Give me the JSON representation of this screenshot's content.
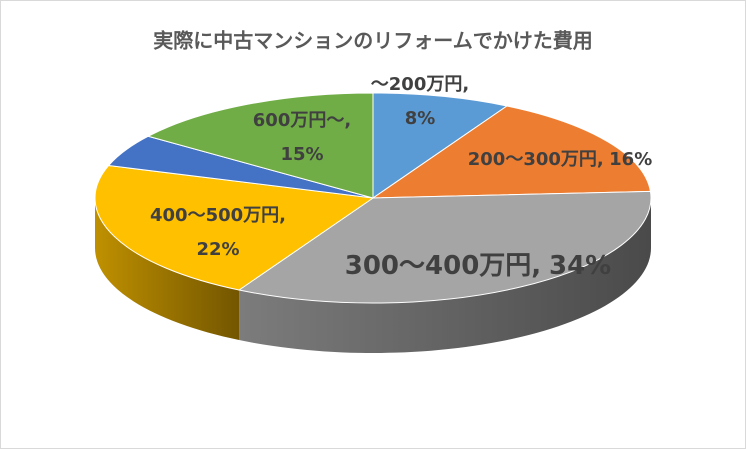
{
  "chart_data": {
    "type": "pie3d",
    "title": "実際に中古マンションのリフォームでかけた費用",
    "categories": [
      "～200万円",
      "200～300万円",
      "300～400万円",
      "400～500万円",
      null,
      "600万円～"
    ],
    "values": [
      8,
      16,
      34,
      22,
      5,
      15
    ],
    "value_labels": [
      "8%",
      "16%",
      "34%",
      "22%",
      null,
      "15%"
    ],
    "label_separator": ",",
    "colors": [
      "#5b9bd5",
      "#ed7d31",
      "#a5a5a5",
      "#ffc000",
      "#4472c4",
      "#70ad47"
    ]
  }
}
